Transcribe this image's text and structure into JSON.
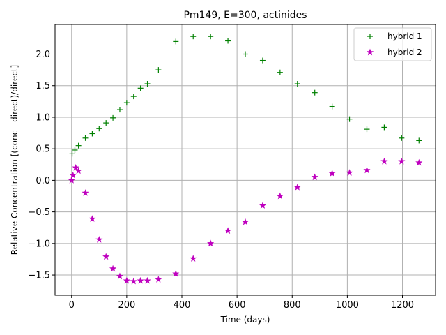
{
  "chart_data": {
    "type": "scatter",
    "title": "Pm149, E=300, actinides",
    "xlabel": "Time (days)",
    "ylabel": "Relative Concentration [(conc - direct)/direct]",
    "xlim": [
      -60,
      1320
    ],
    "ylim": [
      -1.82,
      2.47
    ],
    "xticks": [
      0,
      200,
      400,
      600,
      800,
      1000,
      1200
    ],
    "xtick_labels": [
      "0",
      "200",
      "400",
      "600",
      "800",
      "1000",
      "1200"
    ],
    "yticks": [
      -1.5,
      -1.0,
      -0.5,
      0.0,
      0.5,
      1.0,
      1.5,
      2.0
    ],
    "ytick_labels": [
      "−1.5",
      "−1.0",
      "−0.5",
      "0.0",
      "0.5",
      "1.0",
      "1.5",
      "2.0"
    ],
    "grid": true,
    "legend_position": "upper-right",
    "series": [
      {
        "name": "hybrid 1",
        "marker": "plus",
        "color": "#008000",
        "x": [
          2,
          12,
          25,
          50,
          75,
          100,
          125,
          150,
          175,
          200,
          225,
          250,
          275,
          315,
          378,
          441,
          504,
          567,
          630,
          693,
          756,
          819,
          882,
          945,
          1008,
          1071,
          1134,
          1197,
          1260
        ],
        "y": [
          0.42,
          0.48,
          0.55,
          0.67,
          0.74,
          0.82,
          0.91,
          0.99,
          1.12,
          1.23,
          1.33,
          1.46,
          1.53,
          1.75,
          2.2,
          2.28,
          2.28,
          2.21,
          2.0,
          1.9,
          1.71,
          1.53,
          1.39,
          1.17,
          0.97,
          0.81,
          0.84,
          0.67,
          0.63
        ]
      },
      {
        "name": "hybrid 2",
        "marker": "star",
        "color": "#bf00bf",
        "x": [
          0,
          5,
          15,
          25,
          50,
          75,
          100,
          125,
          150,
          175,
          200,
          225,
          250,
          275,
          315,
          378,
          441,
          504,
          567,
          630,
          693,
          756,
          819,
          882,
          945,
          1008,
          1071,
          1134,
          1197,
          1260
        ],
        "y": [
          0.0,
          0.08,
          0.2,
          0.15,
          -0.2,
          -0.61,
          -0.94,
          -1.21,
          -1.4,
          -1.52,
          -1.59,
          -1.6,
          -1.59,
          -1.59,
          -1.57,
          -1.48,
          -1.24,
          -1.0,
          -0.8,
          -0.66,
          -0.4,
          -0.25,
          -0.11,
          0.05,
          0.11,
          0.12,
          0.16,
          0.3,
          0.3,
          0.28
        ]
      }
    ]
  }
}
